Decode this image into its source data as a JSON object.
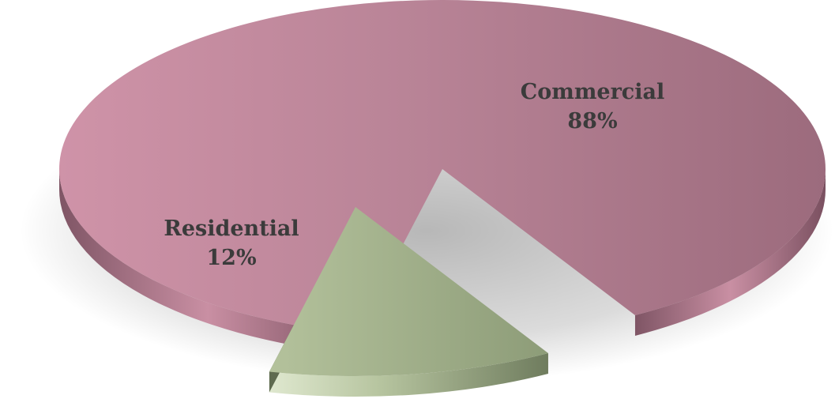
{
  "chart_data": {
    "type": "pie",
    "style": "3d-exploded",
    "legend": "none",
    "categories": [
      "Commercial",
      "Residential"
    ],
    "values": [
      88,
      12
    ],
    "value_labels": [
      "88%",
      "12%"
    ],
    "colors": [
      "#b98497",
      "#9fad88"
    ]
  }
}
